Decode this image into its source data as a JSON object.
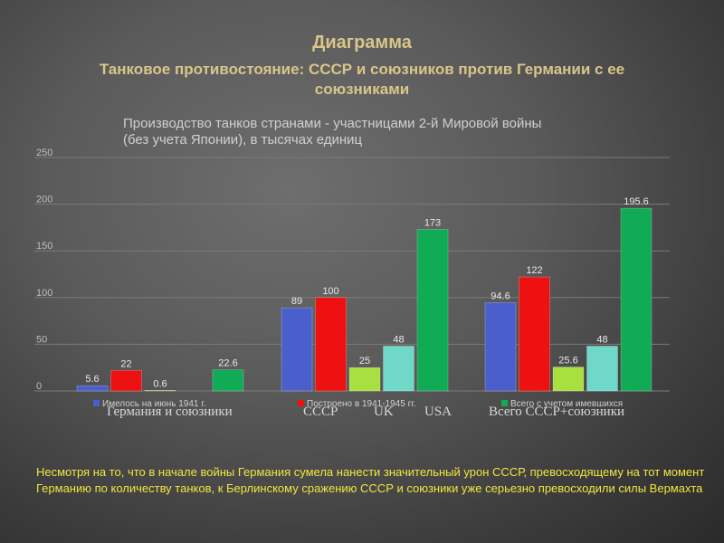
{
  "slide": {
    "title": "Диаграмма",
    "subtitle": "Танковое противостояние: СССР и союзников против Германии с ее союзниками"
  },
  "chart_data": {
    "type": "bar",
    "title": "Производство танков странами - участницами 2-й Мировой войны\n(без учета Японии), в тысячах единиц",
    "categories": [
      "Имелось на июнь 1941 г.",
      "Построено в 1941-1945 гг.",
      "Всего с учетом имевшихся"
    ],
    "series": [
      {
        "name": "Германия и союзники",
        "color": "#4a5fcc",
        "values": [
          5.6,
          89,
          94.6
        ],
        "labels": [
          "5.6",
          "89",
          "94.6"
        ]
      },
      {
        "name": "СССР",
        "color": "#ee1111",
        "values": [
          22,
          100,
          122
        ],
        "labels": [
          "22",
          "100",
          "122"
        ]
      },
      {
        "name": "UK",
        "color": "#a8e040",
        "values": [
          0.6,
          25,
          25.6
        ],
        "labels": [
          "0.6",
          "25",
          "25.6"
        ]
      },
      {
        "name": "USA",
        "color": "#6fd8c8",
        "values": [
          0,
          48,
          48
        ],
        "labels": [
          "",
          "48",
          "48"
        ]
      },
      {
        "name": "Всего СССР+союзники",
        "color": "#11aa55",
        "values": [
          22.6,
          173,
          195.6
        ],
        "labels": [
          "22.6",
          "173",
          "195.6"
        ]
      }
    ],
    "ylim": [
      0,
      250
    ],
    "yticks": [
      0,
      50,
      100,
      150,
      200,
      250
    ],
    "grid": true,
    "legend_position": "bottom"
  },
  "note": "Несмотря на то, что в начале войны Германия сумела нанести значительный урон СССР, превосходящему на тот момент Германию по количеству танков, к Берлинскому сражению СССР и союзники уже серьезно превосходили силы Вермахта"
}
